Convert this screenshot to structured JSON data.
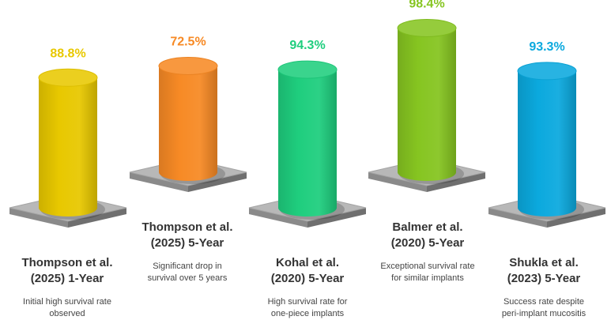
{
  "chart_data": {
    "type": "bar",
    "categories": [
      "Thompson et al. (2025) 1-Year",
      "Thompson et al. (2025) 5-Year",
      "Kohal et al. (2020) 5-Year",
      "Balmer et al. (2020) 5-Year",
      "Shukla et al. (2023) 5-Year"
    ],
    "values": [
      88.8,
      72.5,
      94.3,
      98.4,
      93.3
    ],
    "value_labels": [
      "88.8%",
      "72.5%",
      "94.3%",
      "98.4%",
      "93.3%"
    ],
    "colors": [
      "#E8C800",
      "#F78A25",
      "#1FCE7E",
      "#86C521",
      "#0BA9DE"
    ],
    "ylim": [
      0,
      100
    ],
    "grid": false
  },
  "columns": [
    {
      "title": "Thompson et al.\n(2025) 1-Year",
      "description": "Initial high survival rate\nobserved"
    },
    {
      "title": "Thompson et al.\n(2025) 5-Year",
      "description": "Significant drop in\nsurvival over 5 years"
    },
    {
      "title": "Kohal et al.\n(2020) 5-Year",
      "description": "High survival rate for\none-piece implants"
    },
    {
      "title": "Balmer et al.\n(2020) 5-Year",
      "description": "Exceptional survival rate\nfor similar implants"
    },
    {
      "title": "Shukla et al.\n(2023) 5-Year",
      "description": "Success rate despite\nperi-implant mucositis"
    }
  ]
}
